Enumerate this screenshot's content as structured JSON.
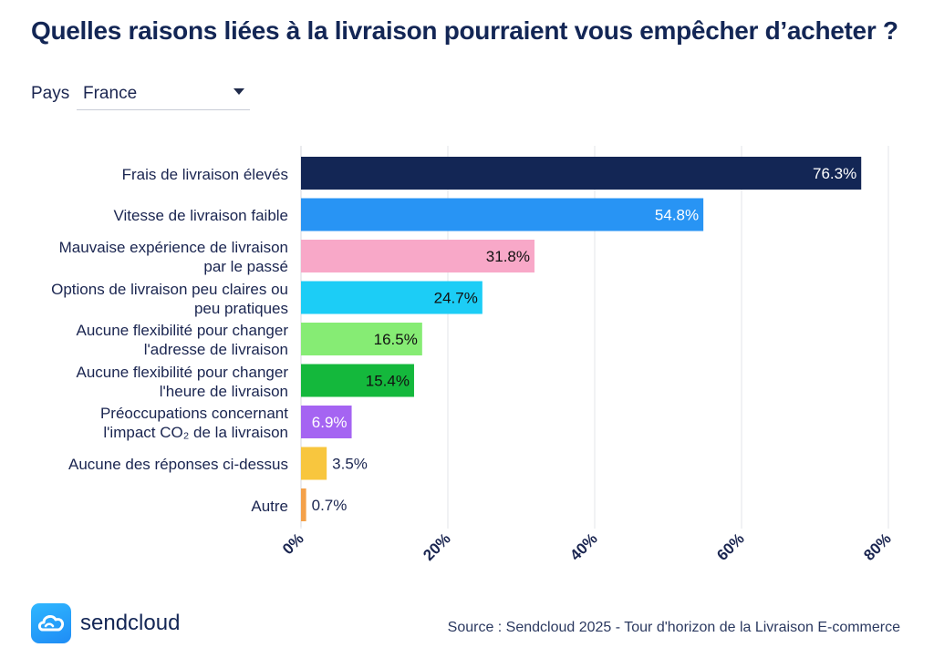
{
  "header": {
    "title": "Quelles raisons liées à la livraison pourraient vous empêcher d’acheter ?"
  },
  "filter": {
    "label": "Pays",
    "selected": "France"
  },
  "chart_data": {
    "type": "bar",
    "orientation": "horizontal",
    "title": "Quelles raisons liées à la livraison pourraient vous empêcher d’acheter ?",
    "xlabel": "",
    "ylabel": "",
    "xlim": [
      0,
      80
    ],
    "xticks": [
      "0%",
      "20%",
      "40%",
      "60%",
      "80%"
    ],
    "grid": true,
    "categories": [
      "Frais de livraison élevés",
      "Vitesse de livraison faible",
      "Mauvaise expérience de livraison par le passé",
      "Options de livraison peu claires ou peu pratiques",
      "Aucune flexibilité pour changer l'adresse de livraison",
      "Aucune flexibilité pour changer l'heure de livraison",
      "Préoccupations concernant l'impact CO₂ de la livraison",
      "Aucune des réponses ci-dessus",
      "Autre"
    ],
    "category_lines": [
      [
        "Frais de livraison élevés"
      ],
      [
        "Vitesse de livraison faible"
      ],
      [
        "Mauvaise expérience de livraison",
        "par le passé"
      ],
      [
        "Options de livraison peu claires ou",
        "peu pratiques"
      ],
      [
        "Aucune flexibilité pour changer",
        "l'adresse de livraison"
      ],
      [
        "Aucune flexibilité pour changer",
        "l'heure de livraison"
      ],
      [
        "Préoccupations concernant",
        "l'impact CO₂ de la livraison"
      ],
      [
        "Aucune des réponses ci-dessus"
      ],
      [
        "Autre"
      ]
    ],
    "values": [
      76.3,
      54.8,
      31.8,
      24.7,
      16.5,
      15.4,
      6.9,
      3.5,
      0.7
    ],
    "value_labels": [
      "76.3%",
      "54.8%",
      "31.8%",
      "24.7%",
      "16.5%",
      "15.4%",
      "6.9%",
      "3.5%",
      "0.7%"
    ],
    "colors": [
      "#132655",
      "#2894f4",
      "#f8a8c8",
      "#1ccdf6",
      "#86ec74",
      "#14b83c",
      "#a564f2",
      "#f8c63e",
      "#f4a14a"
    ],
    "label_colors": [
      "#ffffff",
      "#ffffff",
      "#111111",
      "#111111",
      "#111111",
      "#111111",
      "#ffffff",
      "#1a2550",
      "#1a2550"
    ]
  },
  "footer": {
    "brand": "sendcloud",
    "source": "Source : Sendcloud 2025 - Tour d'horizon de la Livraison E-commerce"
  }
}
